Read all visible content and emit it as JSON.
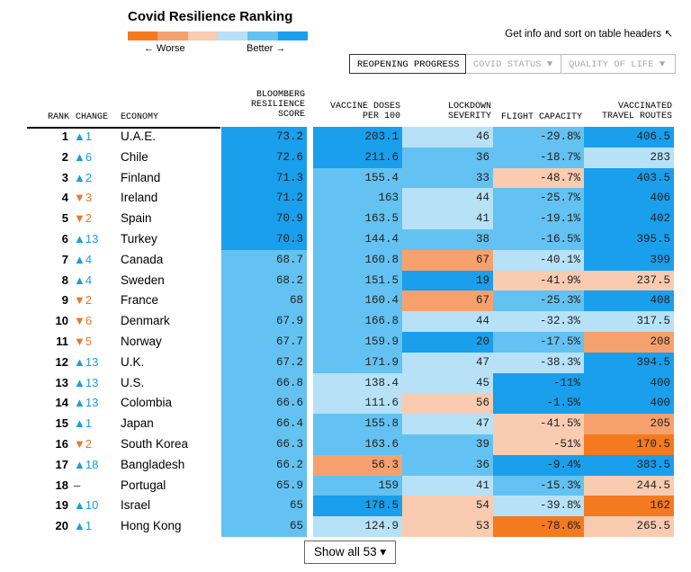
{
  "title": "Covid Resilience Ranking",
  "legend": {
    "colors": [
      "#f47a20",
      "#f6a16d",
      "#f9cbb0",
      "#b7e1f7",
      "#63c2f1",
      "#199fec"
    ],
    "worse_label": "← Worse",
    "better_label": "Better →"
  },
  "hint": "Get info and sort on table headers ↖",
  "tabs": [
    {
      "label": "REOPENING PROGRESS"
    },
    {
      "label": "COVID STATUS ▼"
    },
    {
      "label": "QUALITY OF LIFE ▼"
    }
  ],
  "headers": {
    "rank": "RANK",
    "change": "CHANGE",
    "economy": "ECONOMY",
    "resilience": [
      "BLOOMBERG",
      "RESILIENCE",
      "SCORE"
    ],
    "vaccine": [
      "VACCINE DOSES",
      "PER 100"
    ],
    "lockdown": [
      "LOCKDOWN",
      "SEVERITY"
    ],
    "flight": [
      "FLIGHT CAPACITY"
    ],
    "vtr": [
      "VACCINATED",
      "TRAVEL ROUTES"
    ]
  },
  "palette": {
    "o3": "#f47a20",
    "o2": "#f6a16d",
    "o1": "#f9cbb0",
    "b1": "#b7e1f7",
    "b2": "#63c2f1",
    "b3": "#199fec"
  },
  "rows": [
    {
      "rank": "1",
      "change": "▲1",
      "dir": "up",
      "economy": "U.A.E.",
      "cells": [
        [
          "73.2",
          "b3"
        ],
        [
          "203.1",
          "b3"
        ],
        [
          "46",
          "b1"
        ],
        [
          "-29.8%",
          "b2"
        ],
        [
          "406.5",
          "b3"
        ]
      ]
    },
    {
      "rank": "2",
      "change": "▲6",
      "dir": "up",
      "economy": "Chile",
      "cells": [
        [
          "72.6",
          "b3"
        ],
        [
          "211.6",
          "b3"
        ],
        [
          "36",
          "b2"
        ],
        [
          "-18.7%",
          "b2"
        ],
        [
          "283",
          "b1"
        ]
      ]
    },
    {
      "rank": "3",
      "change": "▲2",
      "dir": "up",
      "economy": "Finland",
      "cells": [
        [
          "71.3",
          "b3"
        ],
        [
          "155.4",
          "b2"
        ],
        [
          "33",
          "b2"
        ],
        [
          "-48.7%",
          "o1"
        ],
        [
          "403.5",
          "b3"
        ]
      ]
    },
    {
      "rank": "4",
      "change": "▼3",
      "dir": "down",
      "economy": "Ireland",
      "cells": [
        [
          "71.2",
          "b3"
        ],
        [
          "163",
          "b2"
        ],
        [
          "44",
          "b1"
        ],
        [
          "-25.7%",
          "b2"
        ],
        [
          "406",
          "b3"
        ]
      ]
    },
    {
      "rank": "5",
      "change": "▼2",
      "dir": "down",
      "economy": "Spain",
      "cells": [
        [
          "70.9",
          "b3"
        ],
        [
          "163.5",
          "b2"
        ],
        [
          "41",
          "b1"
        ],
        [
          "-19.1%",
          "b2"
        ],
        [
          "402",
          "b3"
        ]
      ]
    },
    {
      "rank": "6",
      "change": "▲13",
      "dir": "up",
      "economy": "Turkey",
      "cells": [
        [
          "70.3",
          "b3"
        ],
        [
          "144.4",
          "b2"
        ],
        [
          "38",
          "b2"
        ],
        [
          "-16.5%",
          "b2"
        ],
        [
          "395.5",
          "b3"
        ]
      ]
    },
    {
      "rank": "7",
      "change": "▲4",
      "dir": "up",
      "economy": "Canada",
      "cells": [
        [
          "68.7",
          "b2"
        ],
        [
          "160.8",
          "b2"
        ],
        [
          "67",
          "o2"
        ],
        [
          "-40.1%",
          "b1"
        ],
        [
          "399",
          "b3"
        ]
      ]
    },
    {
      "rank": "8",
      "change": "▲4",
      "dir": "up",
      "economy": "Sweden",
      "cells": [
        [
          "68.2",
          "b2"
        ],
        [
          "151.5",
          "b2"
        ],
        [
          "19",
          "b3"
        ],
        [
          "-41.9%",
          "o1"
        ],
        [
          "237.5",
          "o1"
        ]
      ]
    },
    {
      "rank": "9",
      "change": "▼2",
      "dir": "down",
      "economy": "France",
      "cells": [
        [
          "68",
          "b2"
        ],
        [
          "160.4",
          "b2"
        ],
        [
          "67",
          "o2"
        ],
        [
          "-25.3%",
          "b2"
        ],
        [
          "408",
          "b3"
        ]
      ]
    },
    {
      "rank": "10",
      "change": "▼6",
      "dir": "down",
      "economy": "Denmark",
      "cells": [
        [
          "67.9",
          "b2"
        ],
        [
          "166.8",
          "b2"
        ],
        [
          "44",
          "b1"
        ],
        [
          "-32.3%",
          "b1"
        ],
        [
          "317.5",
          "b1"
        ]
      ]
    },
    {
      "rank": "11",
      "change": "▼5",
      "dir": "down",
      "economy": "Norway",
      "cells": [
        [
          "67.7",
          "b2"
        ],
        [
          "159.9",
          "b2"
        ],
        [
          "20",
          "b3"
        ],
        [
          "-17.5%",
          "b2"
        ],
        [
          "208",
          "o2"
        ]
      ]
    },
    {
      "rank": "12",
      "change": "▲13",
      "dir": "up",
      "economy": "U.K.",
      "cells": [
        [
          "67.2",
          "b2"
        ],
        [
          "171.9",
          "b2"
        ],
        [
          "47",
          "b1"
        ],
        [
          "-38.3%",
          "b1"
        ],
        [
          "394.5",
          "b3"
        ]
      ]
    },
    {
      "rank": "13",
      "change": "▲13",
      "dir": "up",
      "economy": "U.S.",
      "cells": [
        [
          "66.8",
          "b2"
        ],
        [
          "138.4",
          "b1"
        ],
        [
          "45",
          "b1"
        ],
        [
          "-11%",
          "b3"
        ],
        [
          "400",
          "b3"
        ]
      ]
    },
    {
      "rank": "14",
      "change": "▲13",
      "dir": "up",
      "economy": "Colombia",
      "cells": [
        [
          "66.6",
          "b2"
        ],
        [
          "111.6",
          "b1"
        ],
        [
          "56",
          "o1"
        ],
        [
          "-1.5%",
          "b3"
        ],
        [
          "400",
          "b3"
        ]
      ]
    },
    {
      "rank": "15",
      "change": "▲1",
      "dir": "up",
      "economy": "Japan",
      "cells": [
        [
          "66.4",
          "b2"
        ],
        [
          "155.8",
          "b2"
        ],
        [
          "47",
          "b1"
        ],
        [
          "-41.5%",
          "o1"
        ],
        [
          "205",
          "o2"
        ]
      ]
    },
    {
      "rank": "16",
      "change": "▼2",
      "dir": "down",
      "economy": "South Korea",
      "cells": [
        [
          "66.3",
          "b2"
        ],
        [
          "163.6",
          "b2"
        ],
        [
          "39",
          "b2"
        ],
        [
          "-51%",
          "o1"
        ],
        [
          "170.5",
          "o3"
        ]
      ]
    },
    {
      "rank": "17",
      "change": "▲18",
      "dir": "up",
      "economy": "Bangladesh",
      "cells": [
        [
          "66.2",
          "b2"
        ],
        [
          "56.3",
          "o2"
        ],
        [
          "36",
          "b2"
        ],
        [
          "-9.4%",
          "b3"
        ],
        [
          "383.5",
          "b3"
        ]
      ]
    },
    {
      "rank": "18",
      "change": "–",
      "dir": "same",
      "economy": "Portugal",
      "cells": [
        [
          "65.9",
          "b2"
        ],
        [
          "159",
          "b2"
        ],
        [
          "41",
          "b1"
        ],
        [
          "-15.3%",
          "b2"
        ],
        [
          "244.5",
          "o1"
        ]
      ]
    },
    {
      "rank": "19",
      "change": "▲10",
      "dir": "up",
      "economy": "Israel",
      "cells": [
        [
          "65",
          "b2"
        ],
        [
          "178.5",
          "b3"
        ],
        [
          "54",
          "o1"
        ],
        [
          "-39.8%",
          "b1"
        ],
        [
          "162",
          "o3"
        ]
      ]
    },
    {
      "rank": "20",
      "change": "▲1",
      "dir": "up",
      "economy": "Hong Kong",
      "cells": [
        [
          "65",
          "b2"
        ],
        [
          "124.9",
          "b1"
        ],
        [
          "53",
          "o1"
        ],
        [
          "-78.6%",
          "o3"
        ],
        [
          "265.5",
          "o1"
        ]
      ]
    }
  ],
  "show_all": "Show all 53 ▾"
}
